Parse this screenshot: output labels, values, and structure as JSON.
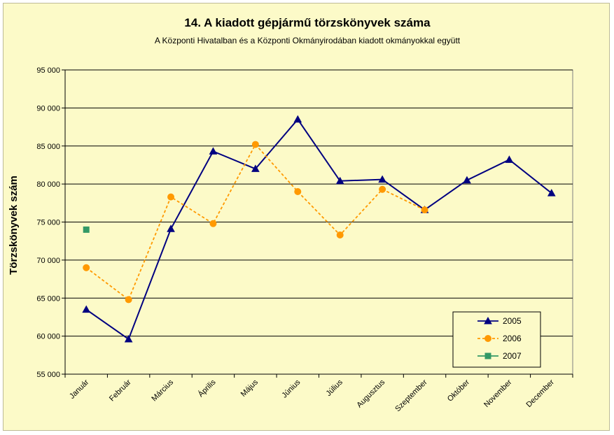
{
  "chart_data": {
    "type": "line",
    "title": "14. A  kiadott  gépjármű  törzskönyvek  száma",
    "subtitle": "A Központi Hivatalban és a Központi Okmányirodában kiadott okmányokkal együtt",
    "ylabel": "Törzskönyvek szám",
    "xlabel": "",
    "ylim": [
      55000,
      95000
    ],
    "yticks": [
      55000,
      60000,
      65000,
      70000,
      75000,
      80000,
      85000,
      90000,
      95000
    ],
    "ytick_labels": [
      "55 000",
      "60 000",
      "65 000",
      "70 000",
      "75 000",
      "80 000",
      "85 000",
      "90 000",
      "95 000"
    ],
    "categories": [
      "Január",
      "Február",
      "Március",
      "Április",
      "Május",
      "Június",
      "Július",
      "Augusztus",
      "Szeptember",
      "Október",
      "November",
      "December"
    ],
    "grid": "horizontal",
    "legend_position": "bottom-right",
    "series": [
      {
        "name": "2005",
        "color": "#000080",
        "marker": "triangle",
        "dash": "solid",
        "values": [
          63500,
          59600,
          74100,
          84300,
          82000,
          88500,
          80400,
          80600,
          76600,
          80500,
          83200,
          78800
        ]
      },
      {
        "name": "2006",
        "color": "#ff9900",
        "marker": "circle",
        "dash": "dashed",
        "values": [
          69000,
          64800,
          78300,
          74800,
          85200,
          79000,
          73300,
          79300,
          76600,
          null,
          null,
          null
        ]
      },
      {
        "name": "2007",
        "color": "#339966",
        "marker": "square",
        "dash": "solid",
        "values": [
          74000,
          null,
          null,
          null,
          null,
          null,
          null,
          null,
          null,
          null,
          null,
          null
        ]
      }
    ]
  }
}
